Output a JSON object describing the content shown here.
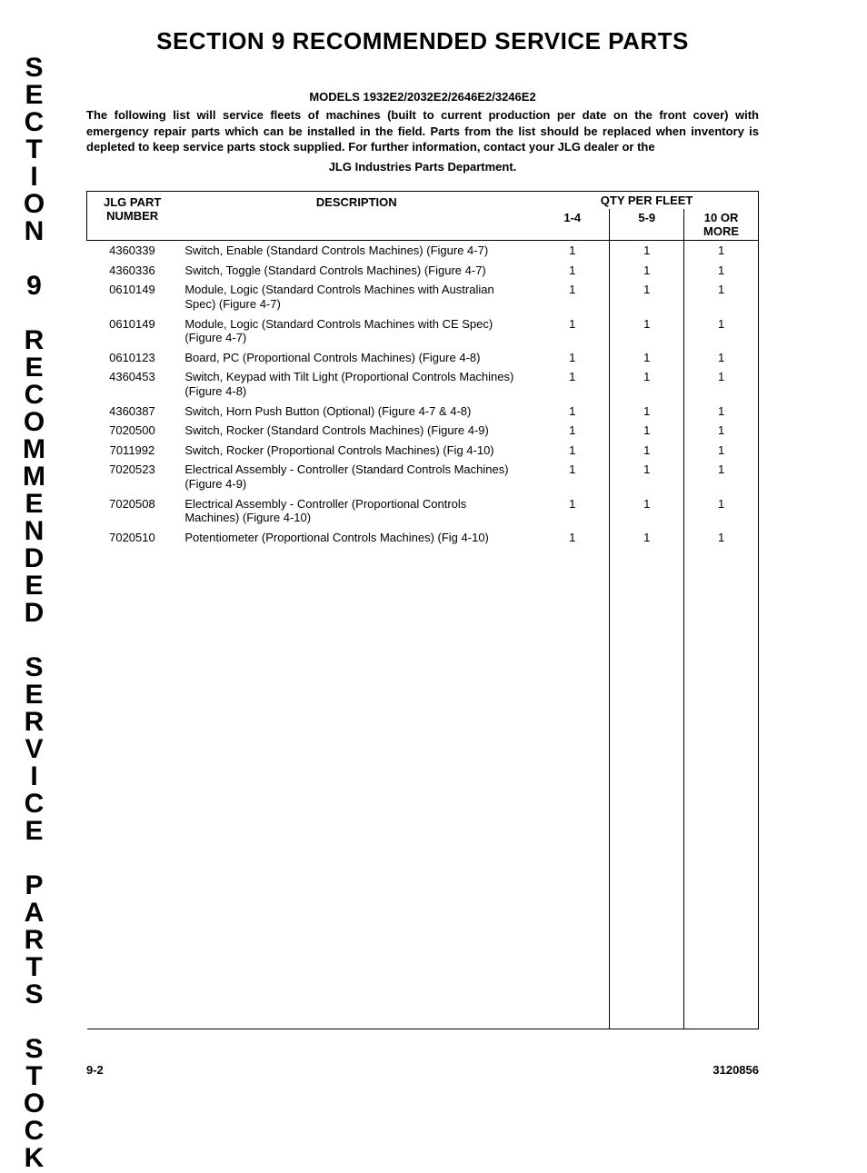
{
  "sidebar": {
    "text": "S\nE\nC\nT\nI\nO\nN\n\n9\n\nR\nE\nC\nO\nM\nM\nE\nN\nD\nE\nD\n\nS\nE\nR\nV\nI\nC\nE\n\nP\nA\nR\nT\nS\n\nS\nT\nO\nC\nK"
  },
  "header": {
    "title_full": "SECTION 9    RECOMMENDED SERVICE PARTS",
    "models": "MODELS 1932E2/2032E2/2646E2/3246E2",
    "intro": "The following list will service fleets of machines (built to current production per date on the front cover) with emergency repair parts which can be installed in the field. Parts from the list should be replaced when inventory is depleted to keep service parts stock supplied. For further information, contact your JLG dealer or the",
    "intro_last": "JLG Industries Parts Department."
  },
  "table": {
    "columns": {
      "part_number": "JLG PART NUMBER",
      "part_line1": "JLG PART",
      "part_line2": "NUMBER",
      "description": "DESCRIPTION",
      "qty_group": "QTY PER FLEET",
      "sub1": "1-4",
      "sub2": "5-9",
      "sub3": "10 OR MORE"
    },
    "rows": [
      {
        "part": "4360339",
        "desc": "Switch, Enable (Standard Controls Machines) (Figure 4-7)",
        "q1": "1",
        "q2": "1",
        "q3": "1"
      },
      {
        "part": "4360336",
        "desc": "Switch, Toggle (Standard Controls Machines) (Figure 4-7)",
        "q1": "1",
        "q2": "1",
        "q3": "1"
      },
      {
        "part": "0610149",
        "desc": "Module, Logic (Standard Controls Machines with Australian Spec) (Figure 4-7)",
        "q1": "1",
        "q2": "1",
        "q3": "1"
      },
      {
        "part": "0610149",
        "desc": "Module, Logic (Standard Controls Machines with CE Spec) (Figure 4-7)",
        "q1": "1",
        "q2": "1",
        "q3": "1"
      },
      {
        "part": "0610123",
        "desc": "Board, PC (Proportional Controls Machines) (Figure 4-8)",
        "q1": "1",
        "q2": "1",
        "q3": "1"
      },
      {
        "part": "4360453",
        "desc": "Switch, Keypad with Tilt Light (Proportional Controls Machines) (Figure 4-8)",
        "q1": "1",
        "q2": "1",
        "q3": "1"
      },
      {
        "part": "4360387",
        "desc": "Switch, Horn Push Button (Optional) (Figure 4-7 & 4-8)",
        "q1": "1",
        "q2": "1",
        "q3": "1"
      },
      {
        "part": "7020500",
        "desc": "Switch, Rocker (Standard Controls Machines) (Figure 4-9)",
        "q1": "1",
        "q2": "1",
        "q3": "1"
      },
      {
        "part": "7011992",
        "desc": "Switch, Rocker (Proportional Controls Machines) (Fig 4-10)",
        "q1": "1",
        "q2": "1",
        "q3": "1"
      },
      {
        "part": "7020523",
        "desc": "Electrical Assembly - Controller (Standard Controls Machines) (Figure 4-9)",
        "q1": "1",
        "q2": "1",
        "q3": "1"
      },
      {
        "part": "7020508",
        "desc": "Electrical Assembly - Controller (Proportional Controls Machines) (Figure 4-10)",
        "q1": "1",
        "q2": "1",
        "q3": "1"
      },
      {
        "part": "7020510",
        "desc": "Potentiometer (Proportional Controls Machines) (Fig 4-10)",
        "q1": "1",
        "q2": "1",
        "q3": "1"
      }
    ]
  },
  "footer": {
    "page": "9-2",
    "doc_number": "3120856"
  },
  "colors": {
    "text": "#000000",
    "background": "#ffffff",
    "border": "#000000"
  },
  "typography": {
    "body_font": "Arial",
    "title_size_pt": 20,
    "body_size_pt": 10,
    "sidebar_size_pt": 22
  }
}
